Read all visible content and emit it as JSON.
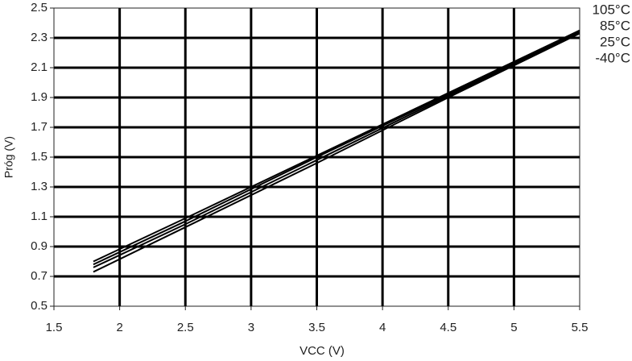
{
  "chart_data": {
    "type": "line",
    "x_label": "VCC (V)",
    "y_label": "Próg (V)",
    "x": [
      1.8,
      2.5,
      3.5,
      4.5,
      5.5
    ],
    "series": [
      {
        "name": "105°C",
        "color": "#000000",
        "values": [
          0.8,
          1.09,
          1.51,
          1.93,
          2.35
        ]
      },
      {
        "name": "85°C",
        "color": "#000000",
        "values": [
          0.78,
          1.07,
          1.5,
          1.92,
          2.35
        ]
      },
      {
        "name": "25°C",
        "color": "#000000",
        "values": [
          0.76,
          1.05,
          1.48,
          1.91,
          2.34
        ]
      },
      {
        "name": "-40°C",
        "color": "#000000",
        "values": [
          0.73,
          1.03,
          1.46,
          1.9,
          2.33
        ]
      }
    ],
    "xlim": [
      1.5,
      5.5
    ],
    "xticks": [
      1.5,
      2,
      2.5,
      3,
      3.5,
      4,
      4.5,
      5,
      5.5
    ],
    "ylim": [
      0.5,
      2.5
    ],
    "yticks": [
      0.5,
      0.7,
      0.9,
      1.1,
      1.3,
      1.5,
      1.7,
      1.9,
      2.1,
      2.3,
      2.5
    ],
    "grid": true
  }
}
